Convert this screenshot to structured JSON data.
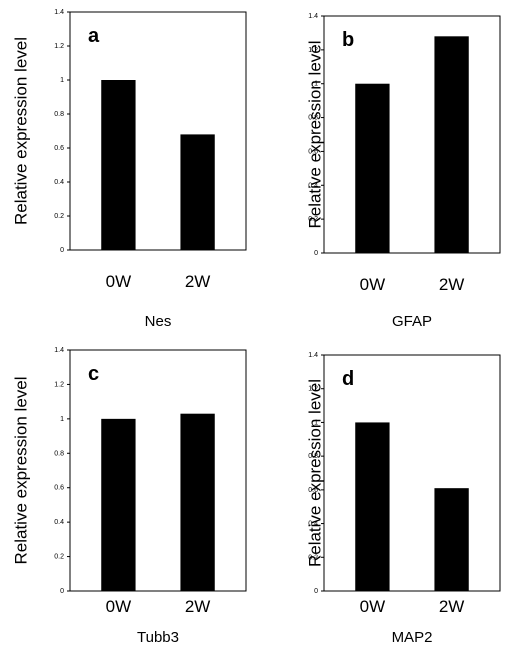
{
  "chart_data": [
    {
      "type": "bar",
      "panel_letter": "a",
      "ylabel": "Relative expression level",
      "xlabel": "Nes",
      "categories": [
        "0W",
        "2W"
      ],
      "values": [
        1.0,
        0.68
      ],
      "ylim": [
        0,
        1.4
      ],
      "yticks": [
        "0",
        "0.2",
        "0.4",
        "0.6",
        "0.8",
        "1",
        "1.2",
        "1.4"
      ],
      "grid": false,
      "bar_color": "#000000"
    },
    {
      "type": "bar",
      "panel_letter": "b",
      "ylabel": "Relative expression level",
      "xlabel": "GFAP",
      "categories": [
        "0W",
        "2W"
      ],
      "values": [
        1.0,
        1.28
      ],
      "ylim": [
        0,
        1.4
      ],
      "yticks": [
        "0",
        "0.2",
        "0.4",
        "0.6",
        "0.8",
        "1",
        "1.2",
        "1.4"
      ],
      "grid": false,
      "bar_color": "#000000"
    },
    {
      "type": "bar",
      "panel_letter": "c",
      "ylabel": "Relative expression level",
      "xlabel": "Tubb3",
      "categories": [
        "0W",
        "2W"
      ],
      "values": [
        1.0,
        1.03
      ],
      "ylim": [
        0,
        1.4
      ],
      "yticks": [
        "0",
        "0.2",
        "0.4",
        "0.6",
        "0.8",
        "1",
        "1.2",
        "1.4"
      ],
      "grid": false,
      "bar_color": "#000000"
    },
    {
      "type": "bar",
      "panel_letter": "d",
      "ylabel": "Relative expression level",
      "xlabel": "MAP2",
      "categories": [
        "0W",
        "2W"
      ],
      "values": [
        1.0,
        0.61
      ],
      "ylim": [
        0,
        1.4
      ],
      "yticks": [
        "0",
        "0.2",
        "0.4",
        "0.6",
        "0.8",
        "1",
        "1.2",
        "1.4"
      ],
      "grid": false,
      "bar_color": "#000000"
    }
  ]
}
